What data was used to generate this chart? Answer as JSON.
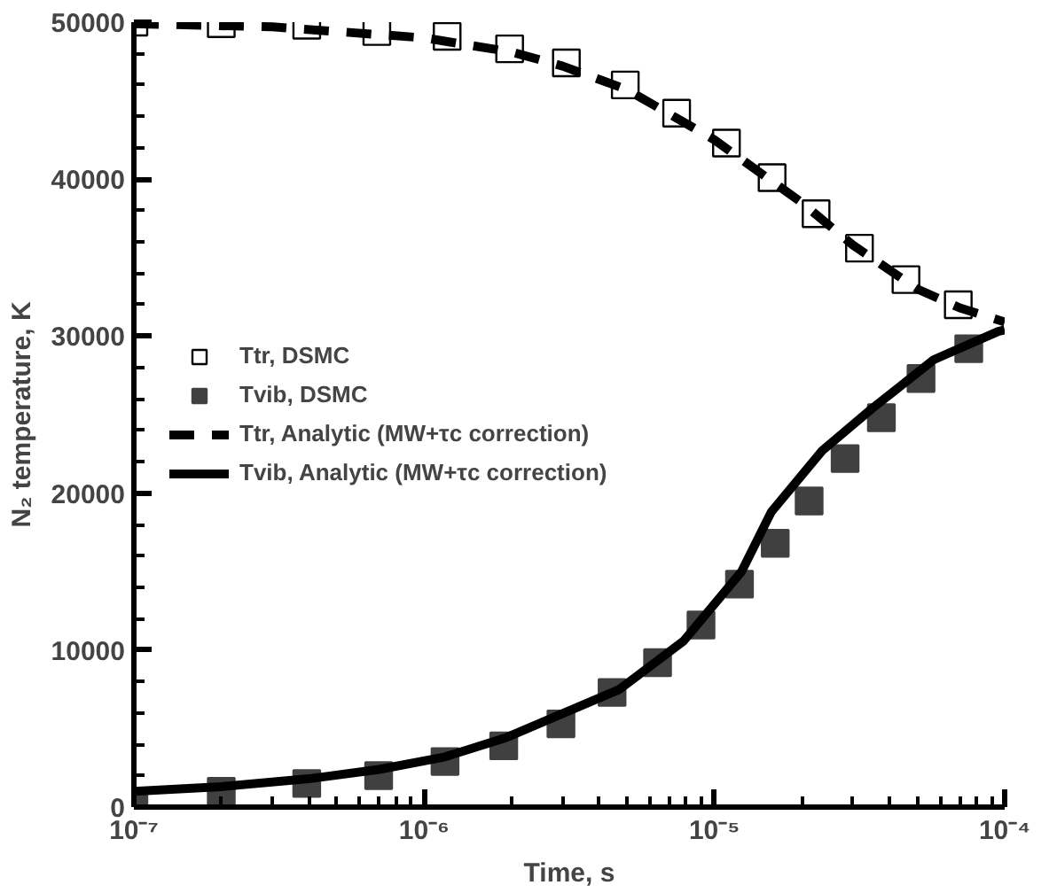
{
  "chart_data": {
    "type": "scatter",
    "xlabel": "Time, s",
    "ylabel": "N₂ temperature, K",
    "log": "x",
    "xlim": [
      1e-07,
      0.0001
    ],
    "ylim": [
      0,
      50000
    ],
    "xticks": [
      {
        "value": 1e-07,
        "label": "10⁻⁷"
      },
      {
        "value": 1e-06,
        "label": "10⁻⁶"
      },
      {
        "value": 1e-05,
        "label": "10⁻⁵"
      },
      {
        "value": 0.0001,
        "label": "10⁻⁴"
      }
    ],
    "yticks": [
      0,
      10000,
      20000,
      30000,
      40000,
      50000
    ],
    "grid": false,
    "legend": "left",
    "series": [
      {
        "name": "Ttr, DSMC",
        "marker": "square",
        "color": "#ffffff",
        "x": [
          1e-07,
          2e-07,
          3.94e-07,
          6.87e-07,
          1.2e-06,
          1.97e-06,
          3.09e-06,
          4.93e-06,
          7.41e-06,
          1.1e-05,
          1.58e-05,
          2.24e-05,
          3.16e-05,
          4.57e-05,
          6.92e-05
        ],
        "values": [
          50000,
          49900,
          49800,
          49400,
          49100,
          48300,
          47400,
          46000,
          44200,
          42300,
          40100,
          37800,
          35600,
          33600,
          32000
        ]
      },
      {
        "name": "Tvib, DSMC",
        "marker": "square",
        "color": "#404040",
        "x": [
          1e-07,
          2e-07,
          3.94e-07,
          6.97e-07,
          1.18e-06,
          1.88e-06,
          2.96e-06,
          4.44e-06,
          6.37e-06,
          8.99e-06,
          1.22e-05,
          1.62e-05,
          2.12e-05,
          2.82e-05,
          3.76e-05,
          5.15e-05,
          7.52e-05
        ],
        "values": [
          100,
          1000,
          1500,
          2000,
          2900,
          3900,
          5300,
          7300,
          9200,
          11600,
          14200,
          16800,
          19500,
          22200,
          24800,
          27300,
          29200
        ]
      },
      {
        "name": "Ttr, Analytic (MW+τc correction)",
        "type": "line",
        "line_style": "dashed",
        "color": "#000000",
        "x": [
          1e-07,
          3e-07,
          1e-06,
          2e-06,
          3e-06,
          5e-06,
          1e-05,
          2e-05,
          3e-05,
          5e-05,
          7e-05,
          0.0001
        ],
        "values": [
          49900,
          49700,
          49000,
          48100,
          47200,
          45700,
          42500,
          38500,
          35800,
          33000,
          31800,
          30900
        ]
      },
      {
        "name": "Tvib, Analytic (MW+τc correction)",
        "type": "line",
        "line_style": "solid",
        "color": "#000000",
        "x": [
          1e-07,
          2e-07,
          4e-07,
          7e-07,
          1.18e-06,
          1.9e-06,
          2.87e-06,
          4.71e-06,
          7.85e-06,
          1.24e-05,
          1.57e-05,
          2.35e-05,
          3.5e-05,
          5.7e-05,
          9.5e-05,
          0.0001
        ],
        "values": [
          1000,
          1300,
          1800,
          2400,
          3200,
          4400,
          5800,
          7500,
          10600,
          15000,
          18800,
          22700,
          25400,
          28500,
          30300,
          30400
        ]
      }
    ]
  }
}
